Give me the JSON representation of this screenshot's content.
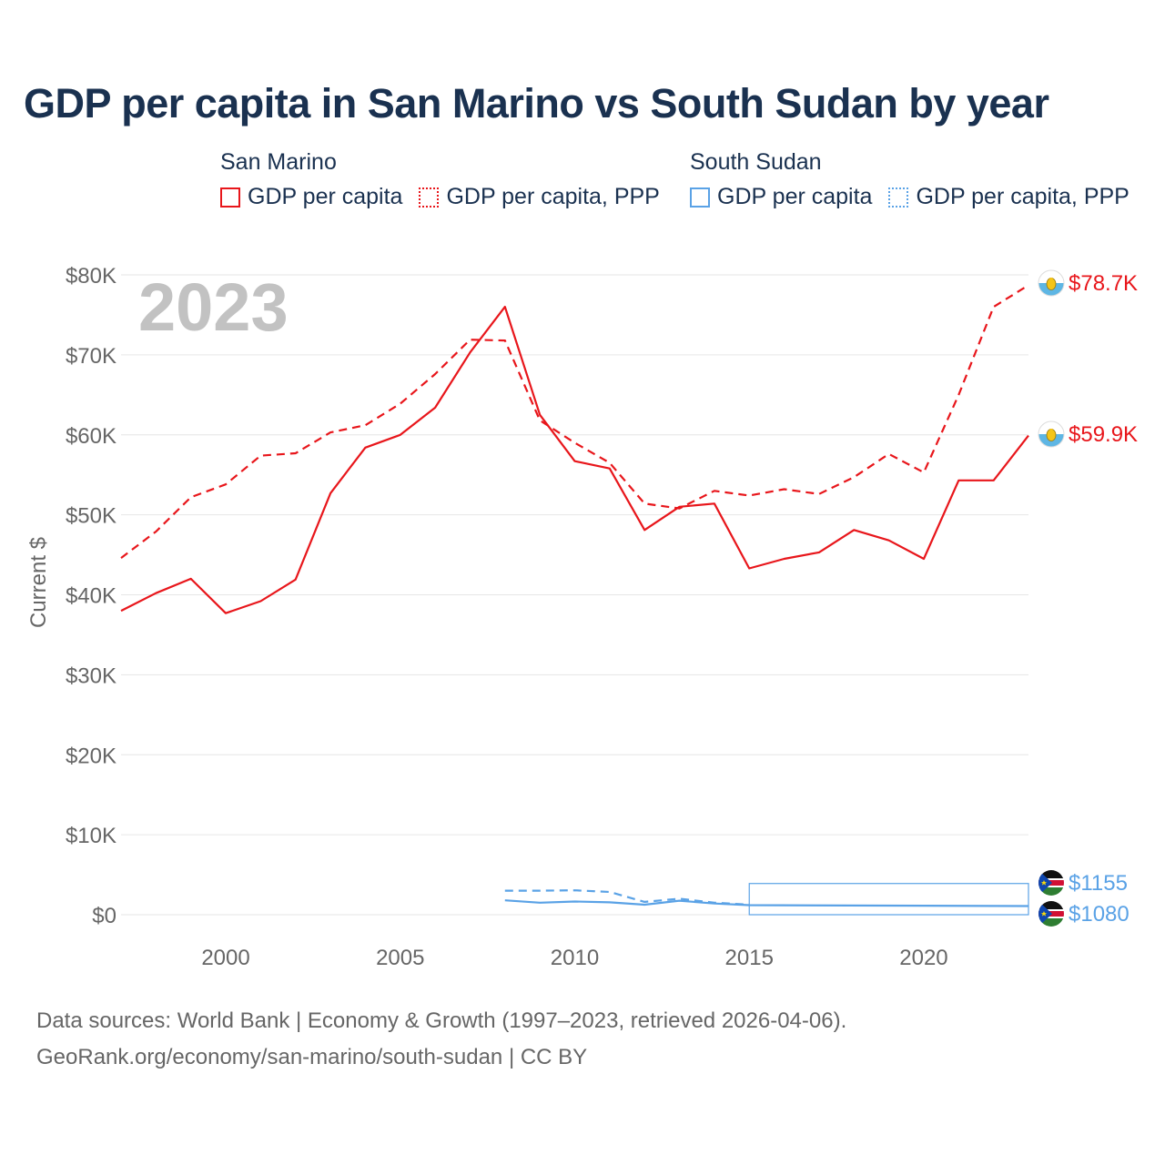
{
  "chart_data": {
    "type": "line",
    "title": "GDP per capita in San Marino vs South Sudan by year",
    "ylabel": "Current $",
    "xlabel": "",
    "year_label": "2023",
    "xlim": [
      1997,
      2023
    ],
    "ylim": [
      0,
      80000
    ],
    "x_ticks": [
      2000,
      2005,
      2010,
      2015,
      2020
    ],
    "y_ticks": [
      {
        "value": 0,
        "label": "$0"
      },
      {
        "value": 10000,
        "label": "$10K"
      },
      {
        "value": 20000,
        "label": "$20K"
      },
      {
        "value": 30000,
        "label": "$30K"
      },
      {
        "value": 40000,
        "label": "$40K"
      },
      {
        "value": 50000,
        "label": "$50K"
      },
      {
        "value": 60000,
        "label": "$60K"
      },
      {
        "value": 70000,
        "label": "$70K"
      },
      {
        "value": 80000,
        "label": "$80K"
      }
    ],
    "legend_groups": [
      {
        "country": "San Marino",
        "items": [
          {
            "label": "GDP per capita",
            "style": "solid",
            "color": "#e8161b"
          },
          {
            "label": "GDP per capita, PPP",
            "style": "dotted",
            "color": "#e8161b"
          }
        ]
      },
      {
        "country": "South Sudan",
        "items": [
          {
            "label": "GDP per capita",
            "style": "solid",
            "color": "#5aa2e6"
          },
          {
            "label": "GDP per capita, PPP",
            "style": "dotted",
            "color": "#5aa2e6"
          }
        ]
      }
    ],
    "series": [
      {
        "name": "San Marino GDP per capita",
        "country": "san-marino",
        "color": "#e8161b",
        "dash": false,
        "x": [
          1997,
          1998,
          1999,
          2000,
          2001,
          2002,
          2003,
          2004,
          2005,
          2006,
          2007,
          2008,
          2009,
          2010,
          2011,
          2012,
          2013,
          2014,
          2015,
          2016,
          2017,
          2018,
          2019,
          2020,
          2021,
          2022,
          2023
        ],
        "values": [
          38000,
          40200,
          42000,
          37700,
          39200,
          41900,
          52700,
          58400,
          60000,
          63400,
          70300,
          76000,
          62500,
          56700,
          55800,
          48100,
          51000,
          51400,
          43300,
          44500,
          45300,
          48100,
          46800,
          44500,
          54300,
          54300,
          59900
        ],
        "end_label": "$59.9K"
      },
      {
        "name": "San Marino GDP per capita, PPP",
        "country": "san-marino",
        "color": "#e8161b",
        "dash": true,
        "x": [
          1997,
          1998,
          1999,
          2000,
          2001,
          2002,
          2003,
          2004,
          2005,
          2006,
          2007,
          2008,
          2009,
          2010,
          2011,
          2012,
          2013,
          2014,
          2015,
          2016,
          2017,
          2018,
          2019,
          2020,
          2021,
          2022,
          2023
        ],
        "values": [
          44600,
          47900,
          52200,
          53800,
          57400,
          57700,
          60300,
          61200,
          63900,
          67600,
          71900,
          71800,
          61800,
          59000,
          56500,
          51400,
          50800,
          53000,
          52400,
          53200,
          52600,
          54700,
          57600,
          55300,
          65000,
          76000,
          78700
        ],
        "end_label": "$78.7K"
      },
      {
        "name": "South Sudan GDP per capita",
        "country": "south-sudan",
        "color": "#5aa2e6",
        "dash": false,
        "x": [
          2008,
          2009,
          2010,
          2011,
          2012,
          2013,
          2014,
          2015,
          2023
        ],
        "values": [
          1800,
          1500,
          1650,
          1550,
          1250,
          1750,
          1400,
          1200,
          1080
        ],
        "end_label": "$1080"
      },
      {
        "name": "South Sudan GDP per capita, PPP",
        "country": "south-sudan",
        "color": "#5aa2e6",
        "dash": true,
        "x": [
          2008,
          2009,
          2010,
          2011,
          2012,
          2013,
          2014,
          2015
        ],
        "values": [
          3000,
          3000,
          3050,
          2850,
          1600,
          2000,
          1500,
          1250
        ],
        "end_label": "$1155"
      }
    ],
    "gap_box": {
      "x_start": 2015,
      "x_end": 2023,
      "y_low": 0,
      "y_high": 3900,
      "color": "#5aa2e6"
    }
  },
  "footer": {
    "source": "Data sources: World Bank | Economy & Growth (1997–2023, retrieved 2026-04-06).",
    "link": "GeoRank.org/economy/san-marino/south-sudan | CC BY"
  }
}
